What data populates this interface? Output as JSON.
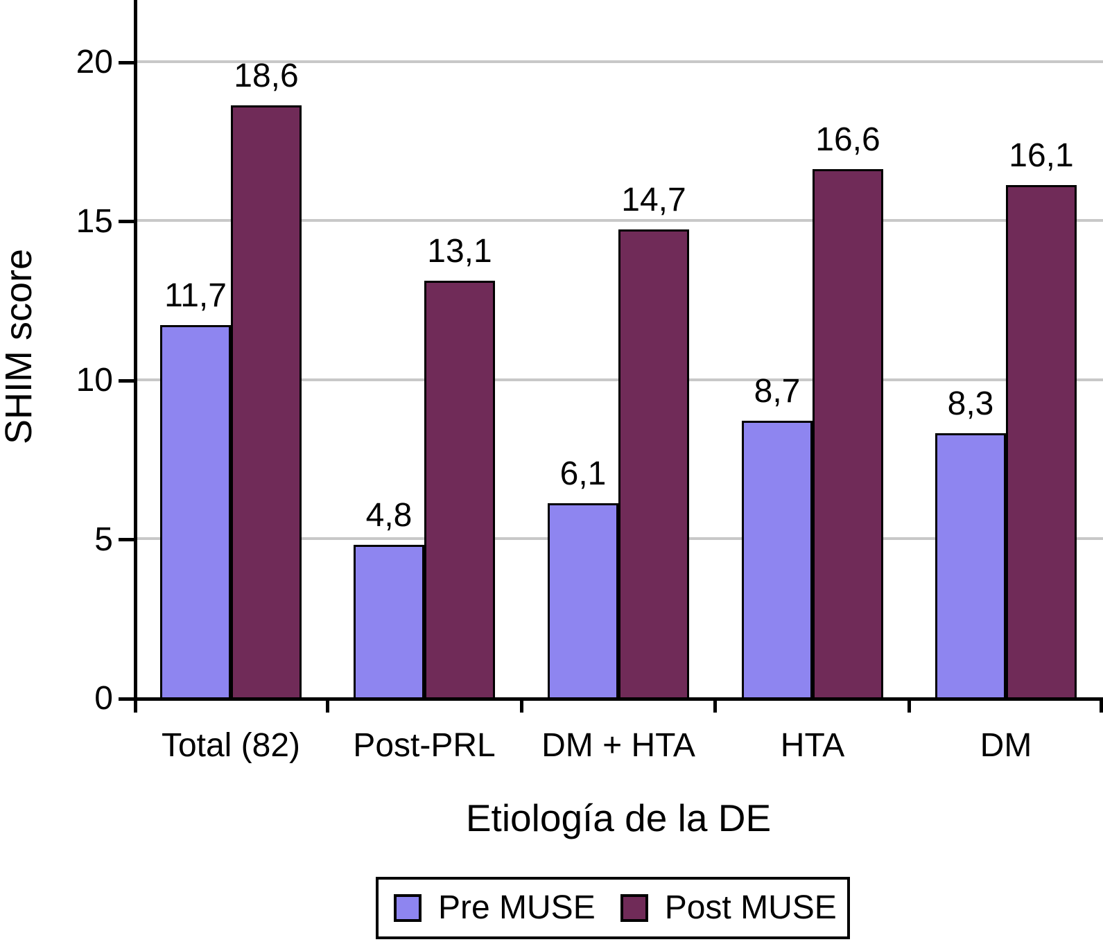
{
  "chart_data": {
    "type": "bar",
    "title": "",
    "xlabel": "Etiología de la DE",
    "ylabel": "SHIM score",
    "categories": [
      "Total (82)",
      "Post-PRL",
      "DM + HTA",
      "HTA",
      "DM"
    ],
    "series": [
      {
        "name": "Pre MUSE",
        "color": "#8E85F0",
        "values": [
          11.7,
          4.8,
          6.1,
          8.7,
          8.3
        ],
        "value_labels": [
          "11,7",
          "4,8",
          "6,1",
          "8,7",
          "8,3"
        ]
      },
      {
        "name": "Post MUSE",
        "color": "#702B58",
        "values": [
          18.6,
          13.1,
          14.7,
          16.6,
          16.1
        ],
        "value_labels": [
          "18,6",
          "13,1",
          "14,7",
          "16,6",
          "16,1"
        ]
      }
    ],
    "y_ticks": [
      0,
      5,
      10,
      15,
      20
    ],
    "y_tick_labels": [
      "0",
      "5",
      "10",
      "15",
      "20"
    ],
    "ylim": [
      0,
      22
    ],
    "grid": true,
    "gridline_color": "#c8c8c8",
    "axis_color": "#000000",
    "decimal_separator": ",",
    "legend_position": "bottom"
  }
}
